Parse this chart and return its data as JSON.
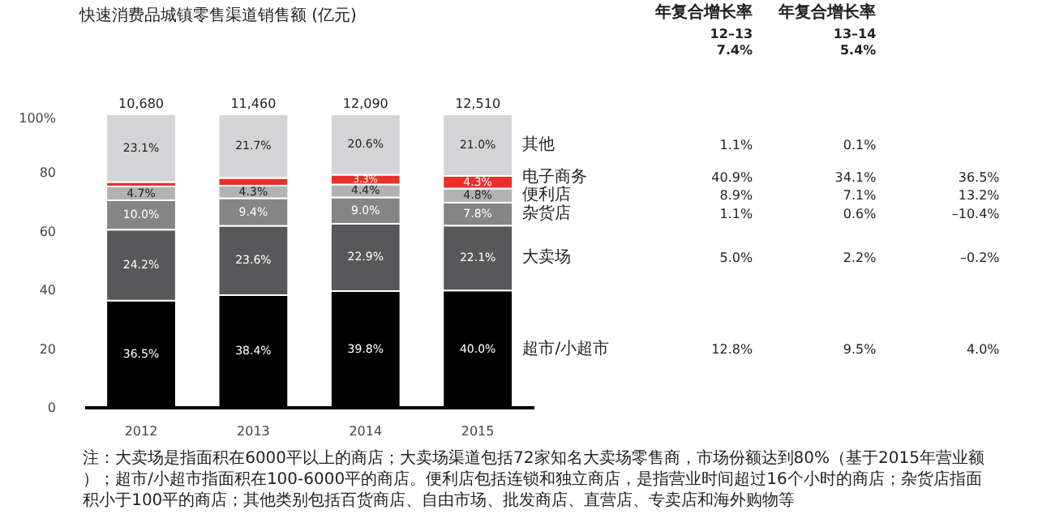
{
  "chart_data": {
    "type": "bar",
    "stacked": true,
    "title": "快速消费品城镇零售渠道销售额 (亿元)",
    "categories": [
      "2012",
      "2013",
      "2014",
      "2015"
    ],
    "ylim": [
      0,
      100
    ],
    "yticks": [
      0,
      20,
      40,
      60,
      80,
      {
        "value": 100,
        "label": "100%"
      }
    ],
    "series": [
      {
        "name": "超市/小超市",
        "color": "#000000",
        "values": [
          36.5,
          38.4,
          39.8,
          40.0
        ],
        "value_labels": [
          "36.5%",
          "38.4%",
          "39.8%",
          "40.0%"
        ]
      },
      {
        "name": "大卖场",
        "color": "#58585a",
        "values": [
          24.2,
          23.6,
          22.9,
          22.1
        ],
        "value_labels": [
          "24.2%",
          "23.6%",
          "22.9%",
          "22.1%"
        ]
      },
      {
        "name": "杂货店",
        "color": "#858585",
        "values": [
          10.0,
          9.4,
          9.0,
          7.8
        ],
        "value_labels": [
          "10.0%",
          "9.4%",
          "9.0%",
          "7.8%"
        ]
      },
      {
        "name": "便利店",
        "color": "#b2b2b2",
        "values": [
          4.7,
          4.3,
          4.4,
          4.8
        ],
        "value_labels": [
          "4.7%",
          "4.3%",
          "4.4%",
          "4.8%"
        ]
      },
      {
        "name": "电子商务",
        "color": "#e8312a",
        "values": [
          1.5,
          2.6,
          3.3,
          4.3
        ],
        "value_labels": [
          null,
          null,
          "3.3%",
          "4.3%"
        ]
      },
      {
        "name": "其他",
        "color": "#d4d4d6",
        "values": [
          23.1,
          21.7,
          20.6,
          21.0
        ],
        "value_labels": [
          "23.1%",
          "21.7%",
          "20.6%",
          "21.0%"
        ]
      }
    ],
    "annotations": [
      "注：大卖场是指面积在6000平以上的商店；大卖场渠道包括72家知名大卖场零售商，市场份额达到80%（基于2015年营业额）；超市/小超市指面积在100-6000平的商店。便利店包括连锁和独立商店，是指营业时间超过16个小时的商店；杂货店指面积小于100平的商店；其他类别包括百货商店、自由市场、批发商店、直营店、专卖店和海外购物等",
      "年复合增长率",
      "年复合增长率",
      "12–13\n7.4%",
      "13–14\n5.4%",
      "12.8%",
      "9.5%",
      "4.0%",
      "5.0%",
      "2.2%",
      "–0.2%",
      "1.1%",
      "0.6%",
      "–10.4%",
      "8.9%",
      "7.1%",
      "13.2%",
      "40.9%",
      "34.1%",
      "36.5%",
      "1.1%",
      "0.1%",
      {
        "text": "10,680",
        "x": "2012",
        "y": 100
      },
      {
        "text": "11,460",
        "x": "2013",
        "y": 100
      },
      {
        "text": "12,090",
        "x": "2014",
        "y": 100
      },
      {
        "text": "12,510",
        "x": "2015",
        "y": 100
      }
    ]
  }
}
